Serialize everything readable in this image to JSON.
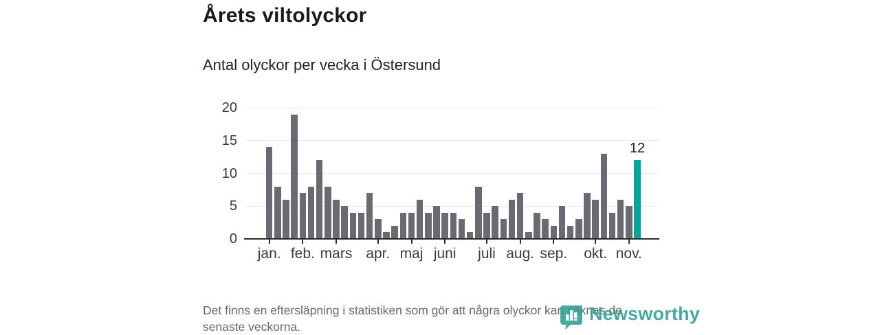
{
  "title": "Årets viltolyckor",
  "subtitle": "Antal olyckor per vecka i Östersund",
  "footer": {
    "lines": [
      "Det finns en eftersläpning i statistiken som gör att några olyckor kan saknas de",
      "senaste veckorna."
    ]
  },
  "branding": {
    "name": "Newsworthy",
    "icon": "newsworthy-pin-barchart-icon",
    "color": "#2f9e93"
  },
  "colors": {
    "bar": "#6a6a72",
    "highlight": "#00a69b",
    "axis": "#2b2b2b",
    "gridline": "#e8e8e8",
    "tick_text": "#3c3c3c",
    "title_text": "#1a1a1a",
    "footer_text": "#686868"
  },
  "chart_data": {
    "type": "bar",
    "title": "Årets viltolyckor",
    "subtitle": "Antal olyckor per vecka i Östersund",
    "x_unit": "vecka",
    "values": [
      14,
      8,
      6,
      19,
      7,
      8,
      12,
      8,
      6,
      5,
      4,
      4,
      7,
      3,
      1,
      2,
      4,
      4,
      6,
      4,
      5,
      4,
      4,
      3,
      1,
      8,
      4,
      5,
      3,
      6,
      7,
      1,
      4,
      3,
      2,
      5,
      2,
      3,
      7,
      6,
      13,
      4,
      6,
      5,
      12
    ],
    "x_tick_labels": [
      "jan.",
      "feb.",
      "mars",
      "apr.",
      "maj",
      "juni",
      "juli",
      "aug.",
      "sep.",
      "okt.",
      "nov."
    ],
    "x_tick_week_index": [
      0,
      4,
      8,
      13,
      17,
      21,
      26,
      30,
      34,
      39,
      43
    ],
    "y_ticks": [
      0,
      5,
      10,
      15,
      20
    ],
    "ylim": [
      0,
      20
    ],
    "grid": "horizontal",
    "highlight_index": 44,
    "highlight_label": "12",
    "legend": "none"
  }
}
